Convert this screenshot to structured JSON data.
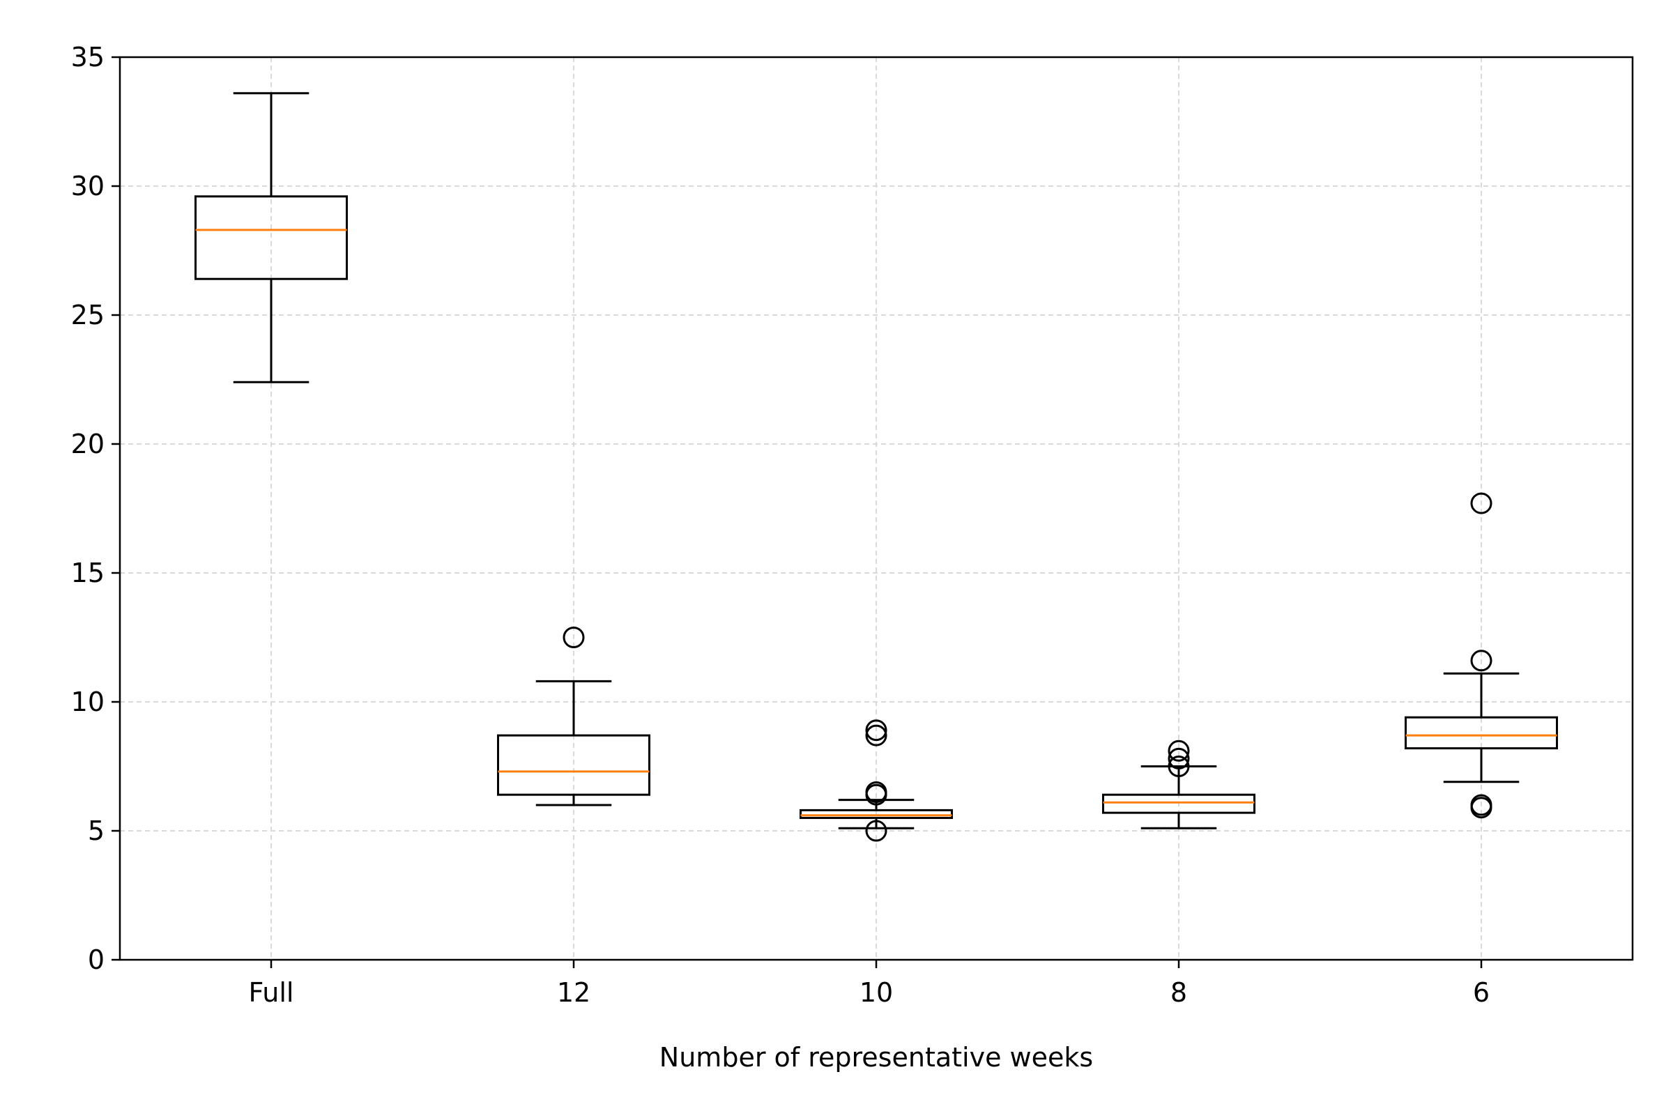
{
  "chart_data": {
    "type": "box",
    "title": "",
    "xlabel": "Number of representative weeks",
    "ylabel": "",
    "ylim": [
      0,
      35
    ],
    "yticks": [
      0,
      5,
      10,
      15,
      20,
      25,
      30,
      35
    ],
    "grid": true,
    "categories": [
      "Full",
      "12",
      "10",
      "8",
      "6"
    ],
    "boxes": [
      {
        "category": "Full",
        "whisker_low": 22.4,
        "q1": 26.4,
        "median": 28.3,
        "q3": 29.6,
        "whisker_high": 33.6,
        "outliers": []
      },
      {
        "category": "12",
        "whisker_low": 6.0,
        "q1": 6.4,
        "median": 7.3,
        "q3": 8.7,
        "whisker_high": 10.8,
        "outliers": [
          12.5
        ]
      },
      {
        "category": "10",
        "whisker_low": 5.1,
        "q1": 5.5,
        "median": 5.6,
        "q3": 5.8,
        "whisker_high": 6.2,
        "outliers": [
          5.0,
          6.4,
          6.5,
          8.7,
          8.9
        ]
      },
      {
        "category": "8",
        "whisker_low": 5.1,
        "q1": 5.7,
        "median": 6.1,
        "q3": 6.4,
        "whisker_high": 7.5,
        "outliers": [
          7.5,
          7.8,
          8.1
        ]
      },
      {
        "category": "6",
        "whisker_low": 6.9,
        "q1": 8.2,
        "median": 8.7,
        "q3": 9.4,
        "whisker_high": 11.1,
        "outliers": [
          5.9,
          6.0,
          11.6,
          17.7
        ]
      }
    ],
    "colors": {
      "box": "#000000",
      "median": "#ff7f0e",
      "grid": "#d9d9d9"
    }
  }
}
